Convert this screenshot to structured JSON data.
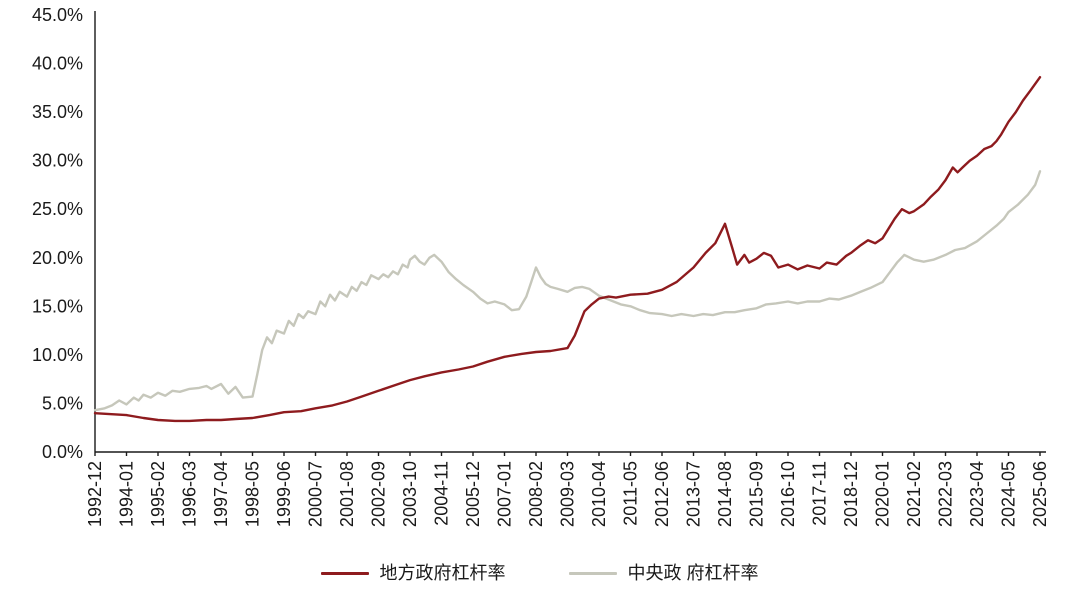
{
  "chart_data": {
    "type": "line",
    "title": "",
    "xlabel": "",
    "ylabel": "",
    "grid": false,
    "legend_position": "bottom",
    "ylim": [
      0,
      45
    ],
    "y_tick_step": 5,
    "y_tick_labels": [
      "0.0%",
      "5.0%",
      "10.0%",
      "15.0%",
      "20.0%",
      "25.0%",
      "30.0%",
      "35.0%",
      "40.0%",
      "45.0%"
    ],
    "x_tick_interval_months": 13,
    "x_range_months": [
      0,
      390
    ],
    "x_tick_labels": [
      "1992-12",
      "1994-01",
      "1995-02",
      "1996-03",
      "1997-04",
      "1998-05",
      "1999-06",
      "2000-07",
      "2001-08",
      "2002-09",
      "2003-10",
      "2004-11",
      "2005-12",
      "2007-01",
      "2008-02",
      "2009-03",
      "2010-04",
      "2011-05",
      "2012-06",
      "2013-07",
      "2014-08",
      "2015-09",
      "2016-10",
      "2017-11",
      "2018-12",
      "2020-01",
      "2021-02",
      "2022-03",
      "2023-04",
      "2024-05",
      "2025-06"
    ],
    "series": [
      {
        "name": "地方政府杠杆率",
        "color": "#8e1b1e",
        "points": [
          [
            0,
            4.0
          ],
          [
            6,
            3.9
          ],
          [
            13,
            3.8
          ],
          [
            20,
            3.5
          ],
          [
            26,
            3.3
          ],
          [
            33,
            3.2
          ],
          [
            39,
            3.2
          ],
          [
            46,
            3.3
          ],
          [
            52,
            3.3
          ],
          [
            58,
            3.4
          ],
          [
            65,
            3.5
          ],
          [
            72,
            3.8
          ],
          [
            78,
            4.1
          ],
          [
            85,
            4.2
          ],
          [
            91,
            4.5
          ],
          [
            98,
            4.8
          ],
          [
            104,
            5.2
          ],
          [
            110,
            5.7
          ],
          [
            117,
            6.3
          ],
          [
            124,
            6.9
          ],
          [
            130,
            7.4
          ],
          [
            136,
            7.8
          ],
          [
            143,
            8.2
          ],
          [
            150,
            8.5
          ],
          [
            156,
            8.8
          ],
          [
            162,
            9.3
          ],
          [
            169,
            9.8
          ],
          [
            176,
            10.1
          ],
          [
            182,
            10.3
          ],
          [
            188,
            10.4
          ],
          [
            195,
            10.7
          ],
          [
            198,
            12.0
          ],
          [
            202,
            14.5
          ],
          [
            205,
            15.2
          ],
          [
            208,
            15.8
          ],
          [
            212,
            16.0
          ],
          [
            215,
            15.9
          ],
          [
            221,
            16.2
          ],
          [
            228,
            16.3
          ],
          [
            234,
            16.7
          ],
          [
            240,
            17.5
          ],
          [
            247,
            19.0
          ],
          [
            252,
            20.5
          ],
          [
            256,
            21.5
          ],
          [
            260,
            23.5
          ],
          [
            263,
            21.0
          ],
          [
            265,
            19.3
          ],
          [
            268,
            20.3
          ],
          [
            270,
            19.5
          ],
          [
            273,
            19.9
          ],
          [
            276,
            20.5
          ],
          [
            279,
            20.2
          ],
          [
            282,
            19.0
          ],
          [
            286,
            19.3
          ],
          [
            290,
            18.8
          ],
          [
            294,
            19.2
          ],
          [
            299,
            18.9
          ],
          [
            302,
            19.5
          ],
          [
            306,
            19.3
          ],
          [
            310,
            20.2
          ],
          [
            312,
            20.5
          ],
          [
            316,
            21.3
          ],
          [
            319,
            21.8
          ],
          [
            322,
            21.5
          ],
          [
            325,
            22.0
          ],
          [
            330,
            24.0
          ],
          [
            333,
            25.0
          ],
          [
            336,
            24.6
          ],
          [
            338,
            24.8
          ],
          [
            342,
            25.5
          ],
          [
            345,
            26.3
          ],
          [
            348,
            27.0
          ],
          [
            351,
            28.0
          ],
          [
            354,
            29.3
          ],
          [
            356,
            28.8
          ],
          [
            358,
            29.3
          ],
          [
            361,
            30.0
          ],
          [
            364,
            30.5
          ],
          [
            367,
            31.2
          ],
          [
            370,
            31.5
          ],
          [
            372,
            32.0
          ],
          [
            374,
            32.7
          ],
          [
            377,
            34.0
          ],
          [
            380,
            35.0
          ],
          [
            383,
            36.2
          ],
          [
            386,
            37.2
          ],
          [
            390,
            38.6
          ]
        ]
      },
      {
        "name": "中央政 府杠杆率",
        "color": "#c6c7bb",
        "points": [
          [
            0,
            4.3
          ],
          [
            4,
            4.5
          ],
          [
            7,
            4.8
          ],
          [
            10,
            5.3
          ],
          [
            13,
            4.9
          ],
          [
            16,
            5.6
          ],
          [
            18,
            5.3
          ],
          [
            20,
            5.9
          ],
          [
            23,
            5.6
          ],
          [
            26,
            6.1
          ],
          [
            29,
            5.8
          ],
          [
            32,
            6.3
          ],
          [
            35,
            6.2
          ],
          [
            39,
            6.5
          ],
          [
            43,
            6.6
          ],
          [
            46,
            6.8
          ],
          [
            48,
            6.5
          ],
          [
            52,
            7.0
          ],
          [
            55,
            6.0
          ],
          [
            58,
            6.7
          ],
          [
            61,
            5.6
          ],
          [
            65,
            5.7
          ],
          [
            67,
            8.0
          ],
          [
            69,
            10.5
          ],
          [
            71,
            11.8
          ],
          [
            73,
            11.2
          ],
          [
            75,
            12.5
          ],
          [
            78,
            12.2
          ],
          [
            80,
            13.5
          ],
          [
            82,
            13.0
          ],
          [
            84,
            14.2
          ],
          [
            86,
            13.8
          ],
          [
            88,
            14.5
          ],
          [
            91,
            14.2
          ],
          [
            93,
            15.5
          ],
          [
            95,
            15.0
          ],
          [
            97,
            16.2
          ],
          [
            99,
            15.6
          ],
          [
            101,
            16.5
          ],
          [
            104,
            16.0
          ],
          [
            106,
            17.0
          ],
          [
            108,
            16.6
          ],
          [
            110,
            17.5
          ],
          [
            112,
            17.2
          ],
          [
            114,
            18.2
          ],
          [
            117,
            17.8
          ],
          [
            119,
            18.3
          ],
          [
            121,
            18.0
          ],
          [
            123,
            18.6
          ],
          [
            125,
            18.3
          ],
          [
            127,
            19.3
          ],
          [
            129,
            19.0
          ],
          [
            130,
            19.8
          ],
          [
            132,
            20.2
          ],
          [
            134,
            19.6
          ],
          [
            136,
            19.3
          ],
          [
            138,
            20.0
          ],
          [
            140,
            20.3
          ],
          [
            143,
            19.6
          ],
          [
            146,
            18.5
          ],
          [
            149,
            17.8
          ],
          [
            152,
            17.2
          ],
          [
            156,
            16.5
          ],
          [
            159,
            15.8
          ],
          [
            162,
            15.3
          ],
          [
            165,
            15.5
          ],
          [
            169,
            15.2
          ],
          [
            172,
            14.6
          ],
          [
            175,
            14.7
          ],
          [
            178,
            16.0
          ],
          [
            180,
            17.5
          ],
          [
            182,
            19.0
          ],
          [
            184,
            18.0
          ],
          [
            186,
            17.3
          ],
          [
            188,
            17.0
          ],
          [
            191,
            16.8
          ],
          [
            195,
            16.5
          ],
          [
            198,
            16.9
          ],
          [
            201,
            17.0
          ],
          [
            204,
            16.8
          ],
          [
            208,
            16.1
          ],
          [
            211,
            15.8
          ],
          [
            214,
            15.5
          ],
          [
            217,
            15.2
          ],
          [
            221,
            15.0
          ],
          [
            225,
            14.6
          ],
          [
            229,
            14.3
          ],
          [
            234,
            14.2
          ],
          [
            238,
            14.0
          ],
          [
            242,
            14.2
          ],
          [
            247,
            14.0
          ],
          [
            251,
            14.2
          ],
          [
            255,
            14.1
          ],
          [
            260,
            14.4
          ],
          [
            264,
            14.4
          ],
          [
            268,
            14.6
          ],
          [
            273,
            14.8
          ],
          [
            277,
            15.2
          ],
          [
            281,
            15.3
          ],
          [
            286,
            15.5
          ],
          [
            290,
            15.3
          ],
          [
            294,
            15.5
          ],
          [
            299,
            15.5
          ],
          [
            303,
            15.8
          ],
          [
            307,
            15.7
          ],
          [
            312,
            16.1
          ],
          [
            316,
            16.5
          ],
          [
            320,
            16.9
          ],
          [
            325,
            17.5
          ],
          [
            328,
            18.5
          ],
          [
            331,
            19.5
          ],
          [
            334,
            20.3
          ],
          [
            338,
            19.8
          ],
          [
            342,
            19.6
          ],
          [
            346,
            19.8
          ],
          [
            351,
            20.3
          ],
          [
            355,
            20.8
          ],
          [
            359,
            21.0
          ],
          [
            364,
            21.7
          ],
          [
            368,
            22.5
          ],
          [
            372,
            23.3
          ],
          [
            375,
            24.0
          ],
          [
            377,
            24.7
          ],
          [
            381,
            25.5
          ],
          [
            385,
            26.5
          ],
          [
            388,
            27.5
          ],
          [
            390,
            28.9
          ]
        ]
      }
    ]
  }
}
